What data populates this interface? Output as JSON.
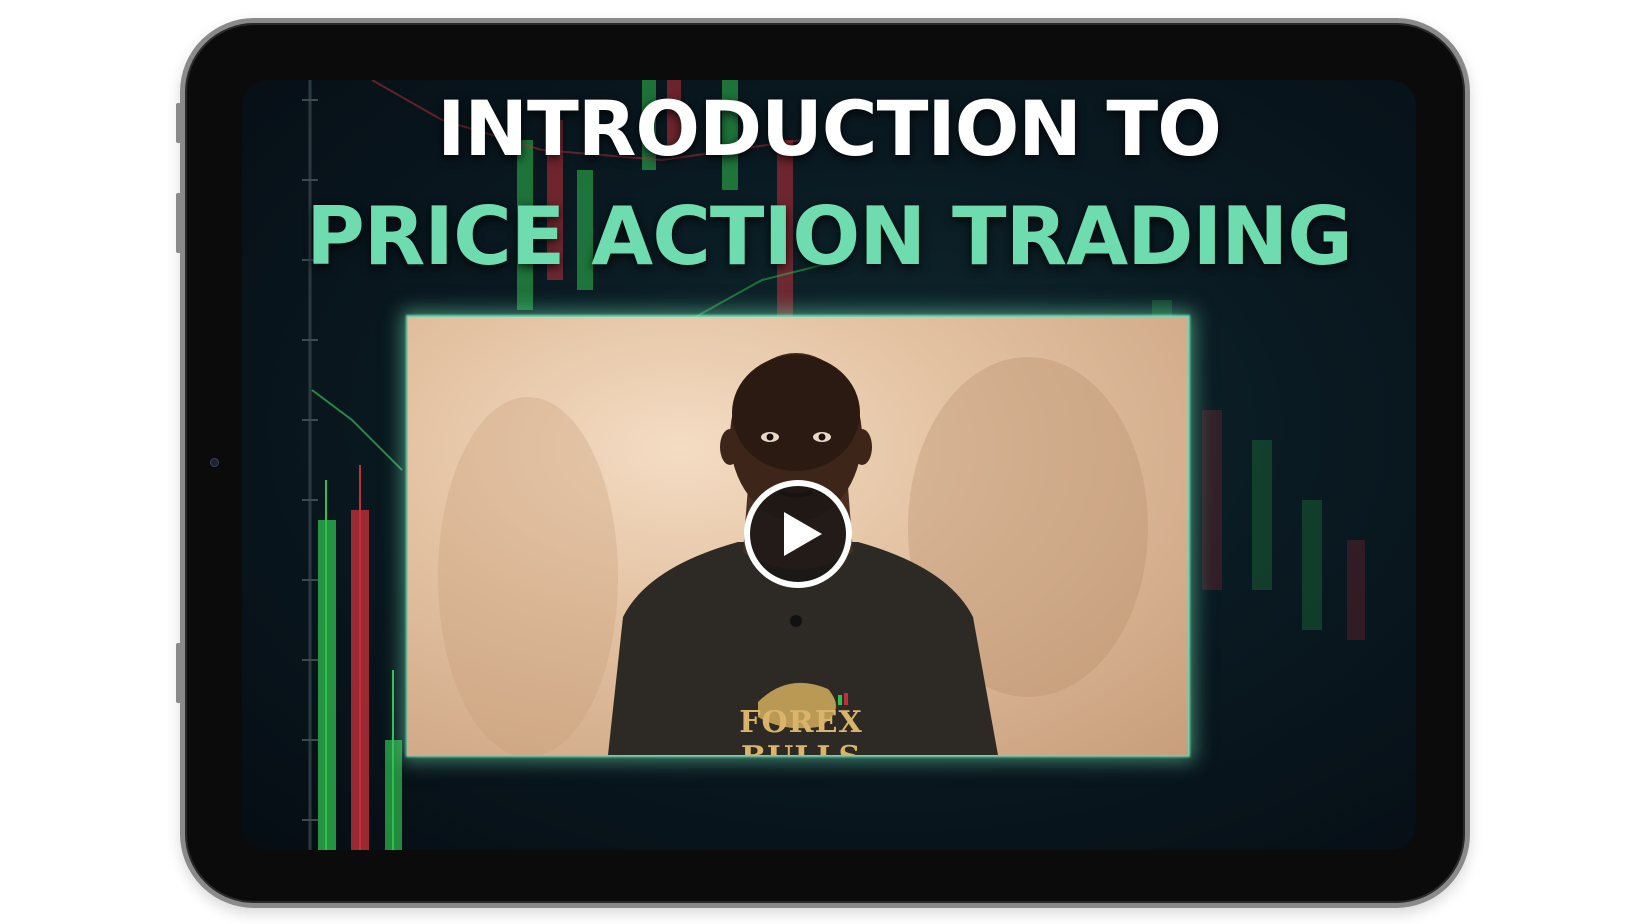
{
  "heading": {
    "line1": "INTRODUCTION TO",
    "line2": "PRICE ACTION TRADING"
  },
  "video": {
    "play_icon": "play-icon",
    "shirt_print": "FOREX BULLS"
  },
  "colors": {
    "accent": "#6fdcb0",
    "screen_bg": "#0a1a22",
    "bull_candle": "#2fbf4f",
    "bear_candle": "#c0303a"
  }
}
